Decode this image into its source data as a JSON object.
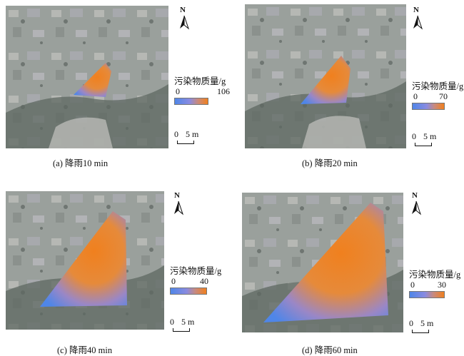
{
  "north_label": "N",
  "scale_bar": {
    "zero": "0",
    "distance": "5 m"
  },
  "legend_title": "污染物质量/g",
  "colors": {
    "low": "#4f86e8",
    "high": "#f0801e",
    "background_image": "#8f9692",
    "dark_vegetation": "#4f5a54"
  },
  "panels": [
    {
      "caption": "(a) 降雨10 min",
      "legend_min": "0",
      "legend_max": "106"
    },
    {
      "caption": "(b) 降雨20 min",
      "legend_min": "0",
      "legend_max": "70"
    },
    {
      "caption": "(c) 降雨40 min",
      "legend_min": "0",
      "legend_max": "40"
    },
    {
      "caption": "(d) 降雨60 min",
      "legend_min": "0",
      "legend_max": "30"
    }
  ]
}
